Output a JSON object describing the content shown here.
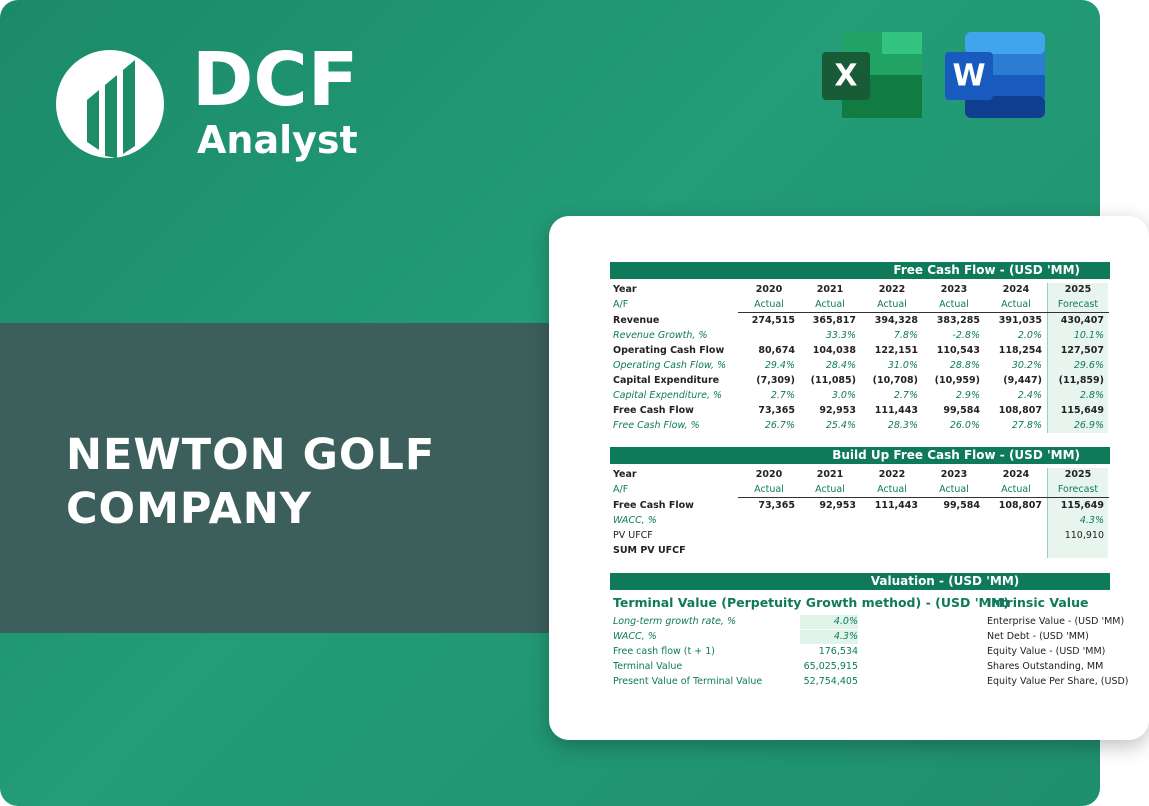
{
  "brand": {
    "name": "DCF",
    "tagline": "Analyst"
  },
  "apps": {
    "excel": "X",
    "word": "W"
  },
  "company": {
    "lines": [
      "NEWTON GOLF",
      "COMPANY"
    ]
  },
  "free_cash_flow": {
    "title": "Free Cash Flow - (USD 'MM)",
    "year_label": "Year",
    "years": [
      "2020",
      "2021",
      "2022",
      "2023",
      "2024",
      "2025"
    ],
    "af_label": "A/F",
    "af": [
      "Actual",
      "Actual",
      "Actual",
      "Actual",
      "Actual",
      "Forecast"
    ],
    "rows": [
      {
        "label": "Revenue",
        "values": [
          "274,515",
          "365,817",
          "394,328",
          "383,285",
          "391,035",
          "430,407"
        ]
      },
      {
        "label": "Revenue Growth, %",
        "values": [
          null,
          "33.3%",
          "7.8%",
          "-2.8%",
          "2.0%",
          "10.1%"
        ]
      },
      {
        "label": "Operating Cash Flow",
        "values": [
          "80,674",
          "104,038",
          "122,151",
          "110,543",
          "118,254",
          "127,507"
        ]
      },
      {
        "label": "Operating Cash Flow, %",
        "values": [
          "29.4%",
          "28.4%",
          "31.0%",
          "28.8%",
          "30.2%",
          "29.6%"
        ]
      },
      {
        "label": "Capital Expenditure",
        "values": [
          "(7,309)",
          "(11,085)",
          "(10,708)",
          "(10,959)",
          "(9,447)",
          "(11,859)"
        ]
      },
      {
        "label": "Capital Expenditure, %",
        "values": [
          "2.7%",
          "3.0%",
          "2.7%",
          "2.9%",
          "2.4%",
          "2.8%"
        ]
      },
      {
        "label": "Free Cash Flow",
        "values": [
          "73,365",
          "92,953",
          "111,443",
          "99,584",
          "108,807",
          "115,649"
        ]
      },
      {
        "label": "Free Cash Flow, %",
        "values": [
          "26.7%",
          "25.4%",
          "28.3%",
          "26.0%",
          "27.8%",
          "26.9%"
        ]
      }
    ]
  },
  "build_up": {
    "title": "Build Up Free Cash Flow - (USD 'MM)",
    "year_label": "Year",
    "years": [
      "2020",
      "2021",
      "2022",
      "2023",
      "2024",
      "2025"
    ],
    "af_label": "A/F",
    "af": [
      "Actual",
      "Actual",
      "Actual",
      "Actual",
      "Actual",
      "Forecast"
    ],
    "rows": [
      {
        "label": "Free Cash Flow",
        "values": [
          "73,365",
          "92,953",
          "111,443",
          "99,584",
          "108,807",
          "115,649"
        ]
      },
      {
        "label": "WACC, %",
        "values": [
          null,
          null,
          null,
          null,
          null,
          "4.3%"
        ]
      },
      {
        "label": "PV UFCF",
        "values": [
          null,
          null,
          null,
          null,
          null,
          "110,910"
        ]
      },
      {
        "label": "SUM PV UFCF",
        "values": [
          null,
          null,
          null,
          null,
          null,
          null
        ]
      }
    ]
  },
  "valuation": {
    "title": "Valuation - (USD 'MM)",
    "terminal": {
      "heading": "Terminal Value (Perpetuity Growth method) - (USD 'MM)",
      "rows": [
        {
          "label": "Long-term growth rate, %",
          "value": "4.0%"
        },
        {
          "label": "WACC, %",
          "value": "4.3%"
        },
        {
          "label": "Free cash flow (t + 1)",
          "value": "176,534"
        },
        {
          "label": "Terminal Value",
          "value": "65,025,915"
        },
        {
          "label": "Present Value of Terminal Value",
          "value": "52,754,405"
        }
      ]
    },
    "intrinsic": {
      "heading": "Intrinsic Value",
      "rows": [
        {
          "label": "Enterprise Value - (USD 'MM)"
        },
        {
          "label": "Net Debt - (USD 'MM)"
        },
        {
          "label": "Equity Value - (USD 'MM)"
        },
        {
          "label": "Shares Outstanding, MM"
        },
        {
          "label": "Equity Value Per Share, (USD)"
        }
      ]
    }
  }
}
